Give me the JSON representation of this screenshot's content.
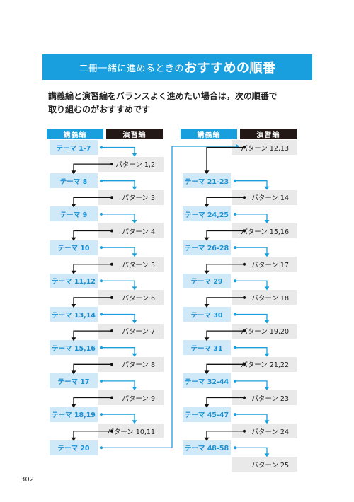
{
  "banner": {
    "small": "二冊一緒に進めるときの",
    "big": "おすすめの順番"
  },
  "intro": {
    "line1": "講義編と演習編をバランスよく進めたい場合は，次の順番で",
    "line2": "取り組むのがおすすめです"
  },
  "headers": {
    "lecture": "講義編",
    "practice": "演習編"
  },
  "left_column": [
    {
      "lecture": "テーマ 1-7",
      "practice": "パターン 1,2"
    },
    {
      "lecture": "テーマ 8",
      "practice": "パターン 3"
    },
    {
      "lecture": "テーマ 9",
      "practice": "パターン 4"
    },
    {
      "lecture": "テーマ 10",
      "practice": "パターン 5"
    },
    {
      "lecture": "テーマ 11,12",
      "practice": "パターン 6"
    },
    {
      "lecture": "テーマ 13,14",
      "practice": "パターン 7"
    },
    {
      "lecture": "テーマ 15,16",
      "practice": "パターン 8"
    },
    {
      "lecture": "テーマ 17",
      "practice": "パターン 9"
    },
    {
      "lecture": "テーマ 18,19",
      "practice": "パターン 10,11"
    },
    {
      "lecture": "テーマ 20",
      "practice": ""
    }
  ],
  "right_column": [
    {
      "lecture": "",
      "practice": "パターン 12,13"
    },
    {
      "lecture": "テーマ 21-23",
      "practice": "パターン 14"
    },
    {
      "lecture": "テーマ 24,25",
      "practice": "パターン 15,16"
    },
    {
      "lecture": "テーマ 26-28",
      "practice": "パターン 17"
    },
    {
      "lecture": "テーマ 29",
      "practice": "パターン 18"
    },
    {
      "lecture": "テーマ 30",
      "practice": "パターン 19,20"
    },
    {
      "lecture": "テーマ 31",
      "practice": "パターン 21,22"
    },
    {
      "lecture": "テーマ 32-44",
      "practice": "パターン 23"
    },
    {
      "lecture": "テーマ 45-47",
      "practice": "パターン 24"
    },
    {
      "lecture": "テーマ 48-58",
      "practice": "パターン 25"
    }
  ],
  "page_number": "302",
  "colors": {
    "accent_blue": "#1a9fde",
    "light_blue": "#cfe9f8",
    "gray": "#e9e9e9",
    "black": "#231815"
  }
}
